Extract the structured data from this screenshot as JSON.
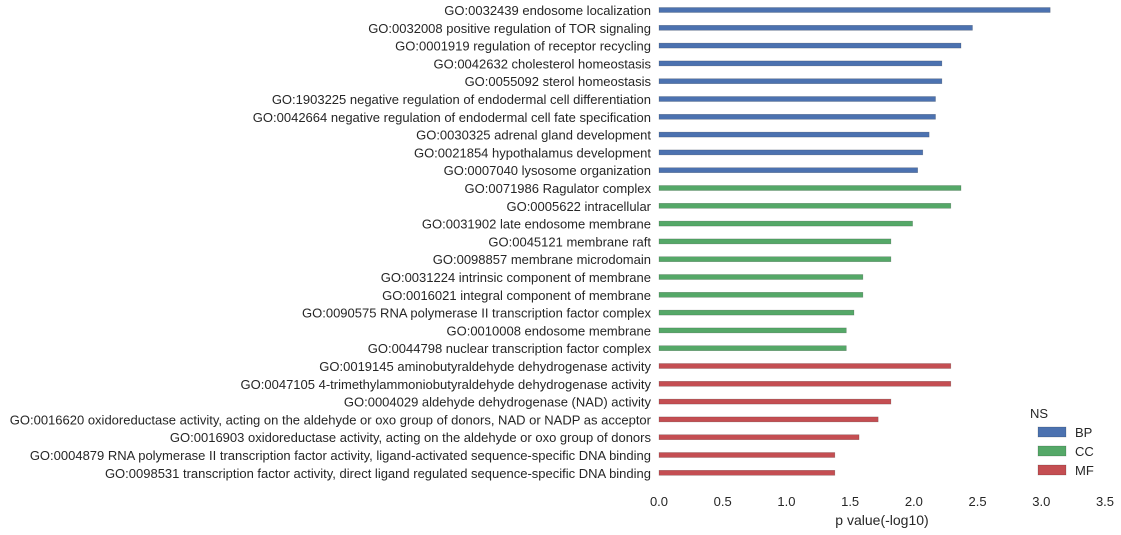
{
  "chart_data": {
    "type": "bar",
    "orientation": "horizontal",
    "xlabel": "p value(-log10)",
    "xlim": [
      0,
      3.5
    ],
    "xticks": [
      "0.0",
      "0.5",
      "1.0",
      "1.5",
      "2.0",
      "2.5",
      "3.0",
      "3.5"
    ],
    "grid": false,
    "legend": {
      "title": "NS",
      "placement": "bottom-right",
      "entries": [
        {
          "name": "BP",
          "color": "#4c72b0"
        },
        {
          "name": "CC",
          "color": "#55a868"
        },
        {
          "name": "MF",
          "color": "#c44e52"
        }
      ]
    },
    "categories": [
      {
        "label": "GO:0032439 endosome localization",
        "value": 3.07,
        "ns": "BP"
      },
      {
        "label": "GO:0032008 positive regulation of TOR signaling",
        "value": 2.46,
        "ns": "BP"
      },
      {
        "label": "GO:0001919 regulation of receptor recycling",
        "value": 2.37,
        "ns": "BP"
      },
      {
        "label": "GO:0042632 cholesterol homeostasis",
        "value": 2.22,
        "ns": "BP"
      },
      {
        "label": "GO:0055092 sterol homeostasis",
        "value": 2.22,
        "ns": "BP"
      },
      {
        "label": "GO:1903225 negative regulation of endodermal cell differentiation",
        "value": 2.17,
        "ns": "BP"
      },
      {
        "label": "GO:0042664 negative regulation of endodermal cell fate specification",
        "value": 2.17,
        "ns": "BP"
      },
      {
        "label": "GO:0030325 adrenal gland development",
        "value": 2.12,
        "ns": "BP"
      },
      {
        "label": "GO:0021854 hypothalamus development",
        "value": 2.07,
        "ns": "BP"
      },
      {
        "label": "GO:0007040 lysosome organization",
        "value": 2.03,
        "ns": "BP"
      },
      {
        "label": "GO:0071986 Ragulator complex",
        "value": 2.37,
        "ns": "CC"
      },
      {
        "label": "GO:0005622 intracellular",
        "value": 2.29,
        "ns": "CC"
      },
      {
        "label": "GO:0031902 late endosome membrane",
        "value": 1.99,
        "ns": "CC"
      },
      {
        "label": "GO:0045121 membrane raft",
        "value": 1.82,
        "ns": "CC"
      },
      {
        "label": "GO:0098857 membrane microdomain",
        "value": 1.82,
        "ns": "CC"
      },
      {
        "label": "GO:0031224 intrinsic component of membrane",
        "value": 1.6,
        "ns": "CC"
      },
      {
        "label": "GO:0016021 integral component of membrane",
        "value": 1.6,
        "ns": "CC"
      },
      {
        "label": "GO:0090575 RNA polymerase II transcription factor complex",
        "value": 1.53,
        "ns": "CC"
      },
      {
        "label": "GO:0010008 endosome membrane",
        "value": 1.47,
        "ns": "CC"
      },
      {
        "label": "GO:0044798 nuclear transcription factor complex",
        "value": 1.47,
        "ns": "CC"
      },
      {
        "label": "GO:0019145 aminobutyraldehyde dehydrogenase activity",
        "value": 2.29,
        "ns": "MF"
      },
      {
        "label": "GO:0047105 4-trimethylammoniobutyraldehyde dehydrogenase activity",
        "value": 2.29,
        "ns": "MF"
      },
      {
        "label": "GO:0004029 aldehyde dehydrogenase (NAD) activity",
        "value": 1.82,
        "ns": "MF"
      },
      {
        "label": "GO:0016620 oxidoreductase activity, acting on the aldehyde or oxo group of donors, NAD or NADP as acceptor",
        "value": 1.72,
        "ns": "MF"
      },
      {
        "label": "GO:0016903 oxidoreductase activity, acting on the aldehyde or oxo group of donors",
        "value": 1.57,
        "ns": "MF"
      },
      {
        "label": "GO:0004879 RNA polymerase II transcription factor activity, ligand-activated sequence-specific DNA binding",
        "value": 1.38,
        "ns": "MF"
      },
      {
        "label": "GO:0098531 transcription factor activity, direct ligand regulated sequence-specific DNA binding",
        "value": 1.38,
        "ns": "MF"
      }
    ]
  }
}
